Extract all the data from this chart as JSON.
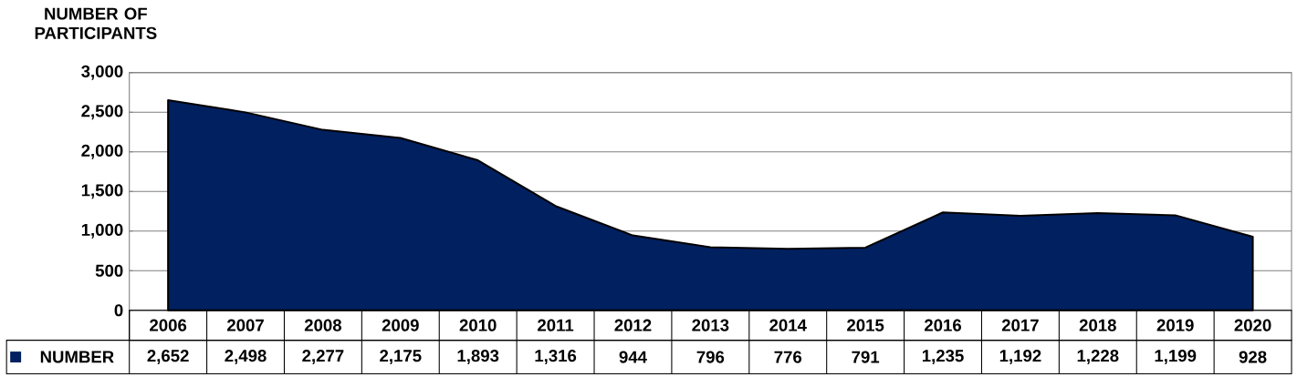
{
  "chart_data": {
    "type": "area",
    "ylabel": "NUMBER OF PARTICIPANTS",
    "categories": [
      "2006",
      "2007",
      "2008",
      "2009",
      "2010",
      "2011",
      "2012",
      "2013",
      "2014",
      "2015",
      "2016",
      "2017",
      "2018",
      "2019",
      "2020"
    ],
    "series": [
      {
        "name": "NUMBER",
        "color": "#002060",
        "values": [
          2652,
          2498,
          2277,
          2175,
          1893,
          1316,
          944,
          796,
          776,
          791,
          1235,
          1192,
          1228,
          1199,
          928
        ],
        "value_labels": [
          "2,652",
          "2,498",
          "2,277",
          "2,175",
          "1,893",
          "1,316",
          "944",
          "796",
          "776",
          "791",
          "1,235",
          "1,192",
          "1,228",
          "1,199",
          "928"
        ]
      }
    ],
    "ylim": [
      0,
      3000
    ],
    "yticks": [
      {
        "value": 0,
        "label": "0"
      },
      {
        "value": 500,
        "label": "500"
      },
      {
        "value": 1000,
        "label": "1,000"
      },
      {
        "value": 1500,
        "label": "1,500"
      },
      {
        "value": 2000,
        "label": "2,000"
      },
      {
        "value": 2500,
        "label": "2,500"
      },
      {
        "value": 3000,
        "label": "3,000"
      }
    ],
    "grid": "y"
  }
}
